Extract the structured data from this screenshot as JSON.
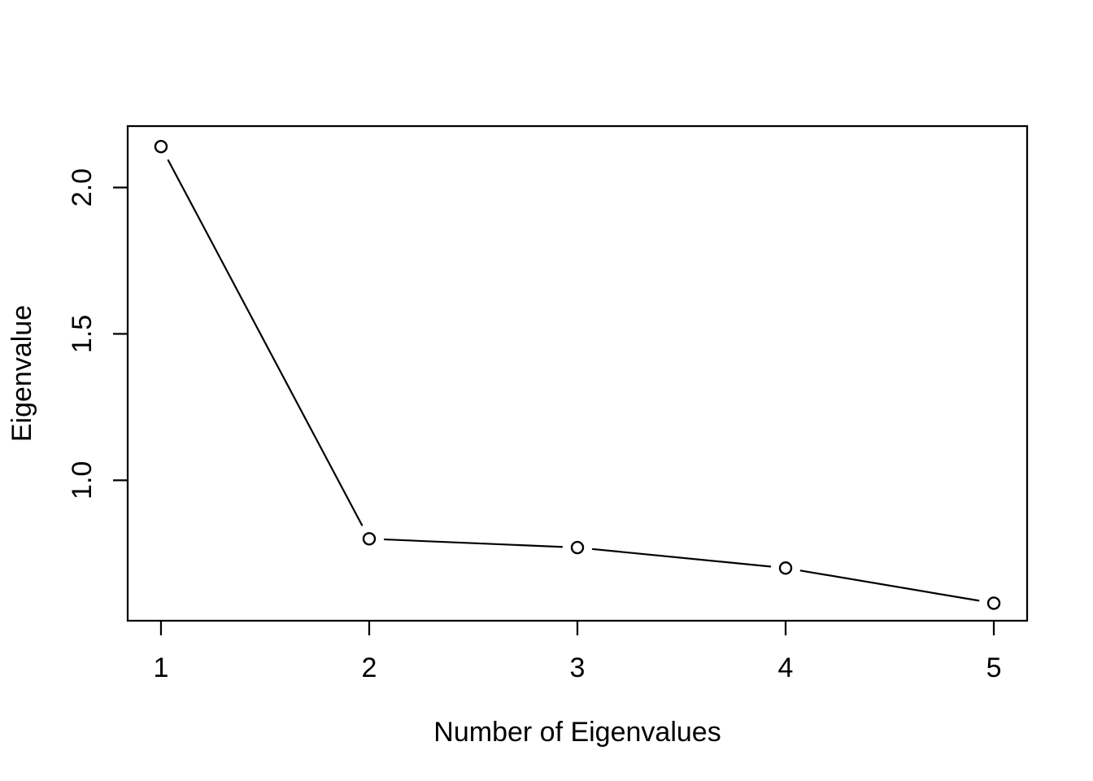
{
  "chart_data": {
    "type": "line",
    "title": "",
    "xlabel": "Number of Eigenvalues",
    "ylabel": "Eigenvalue",
    "x": [
      1,
      2,
      3,
      4,
      5
    ],
    "series": [
      {
        "name": "eigenvalues",
        "values": [
          2.14,
          0.8,
          0.77,
          0.7,
          0.58
        ]
      }
    ],
    "xticks": {
      "values": [
        1,
        2,
        3,
        4,
        5
      ],
      "labels": [
        "1",
        "2",
        "3",
        "4",
        "5"
      ]
    },
    "yticks": {
      "values": [
        1.0,
        1.5,
        2.0
      ],
      "labels": [
        "1.0",
        "1.5",
        "2.0"
      ]
    },
    "xlim": [
      0.84,
      5.16
    ],
    "ylim": [
      0.52,
      2.21
    ],
    "grid": false,
    "legend_position": "none",
    "marker": "open-circle",
    "marker_color": "#000000",
    "line_color": "#000000",
    "axis_color": "#000000",
    "background_color": "#ffffff"
  }
}
